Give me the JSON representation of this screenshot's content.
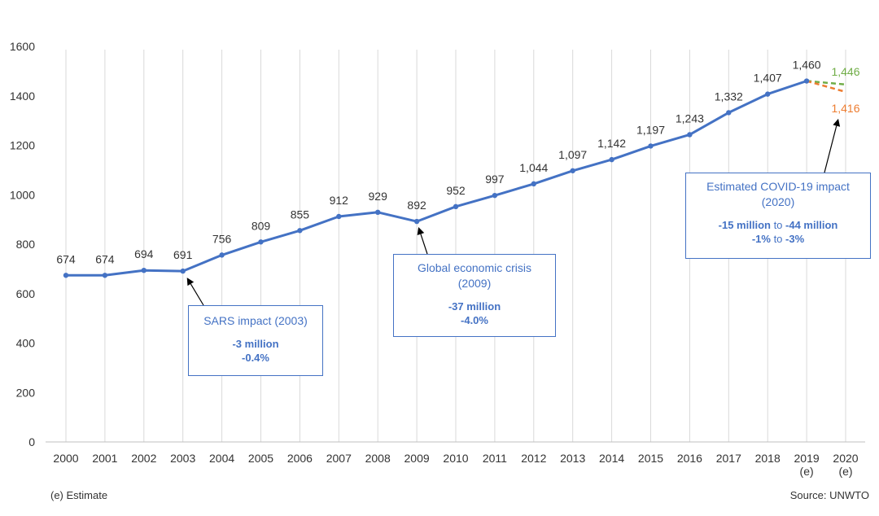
{
  "chart_data": {
    "type": "line",
    "categories": [
      "2000",
      "2001",
      "2002",
      "2003",
      "2004",
      "2005",
      "2006",
      "2007",
      "2008",
      "2009",
      "2010",
      "2011",
      "2012",
      "2013",
      "2014",
      "2015",
      "2016",
      "2017",
      "2018",
      "2019",
      "2020"
    ],
    "category_sublabels": {
      "2019": "(e)",
      "2020": "(e)"
    },
    "series": [
      {
        "values": [
          674,
          674,
          694,
          691,
          756,
          809,
          855,
          912,
          929,
          892,
          952,
          997,
          1044,
          1097,
          1142,
          1197,
          1243,
          1332,
          1407,
          1460,
          null
        ],
        "labels": [
          "674",
          "674",
          "694",
          "691",
          "756",
          "809",
          "855",
          "912",
          "929",
          "892",
          "952",
          "997",
          "1,044",
          "1,097",
          "1,142",
          "1,197",
          "1,243",
          "1,332",
          "1,407",
          "1,460",
          ""
        ],
        "color": "#4472c4"
      }
    ],
    "scenarios": [
      {
        "from": "2019",
        "to": "2020",
        "from_value": 1460,
        "value": 1446,
        "label": "1,446",
        "color": "#70ad47",
        "style": "dashed"
      },
      {
        "from": "2019",
        "to": "2020",
        "from_value": 1460,
        "value": 1416,
        "label": "1,416",
        "color": "#ed7d31",
        "style": "dashed"
      }
    ],
    "ylim": [
      0,
      1600
    ],
    "yticks": [
      0,
      200,
      400,
      600,
      800,
      1000,
      1200,
      1400,
      1600
    ],
    "grid": "vertical",
    "legend": "none",
    "annotations": [
      {
        "title": "SARS impact (2003)",
        "line1": "-3 million",
        "line2": "-0.4%"
      },
      {
        "title": "Global economic crisis (2009)",
        "line1": "-37 million",
        "line2": "-4.0%"
      },
      {
        "title": "Estimated COVID-19 impact (2020)",
        "line1": [
          "-15 million",
          " to ",
          "-44 million"
        ],
        "line2": [
          "-1%",
          " to ",
          "-3%"
        ]
      }
    ]
  },
  "footer": {
    "note": "(e) Estimate",
    "source": "Source: UNWTO"
  }
}
